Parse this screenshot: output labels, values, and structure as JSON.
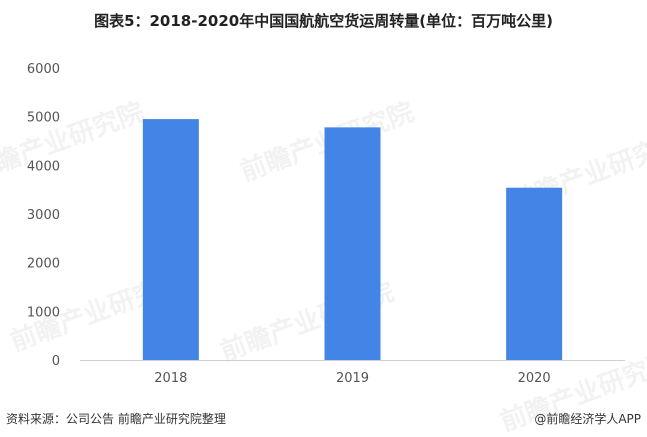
{
  "chart_data": {
    "type": "bar",
    "title": "图表5：2018-2020年中国国航航空货运周转量(单位：百万吨公里)",
    "categories": [
      "2018",
      "2019",
      "2020"
    ],
    "values": [
      4950,
      4780,
      3540
    ],
    "ylim": [
      0,
      6000
    ],
    "yticks": [
      0,
      1000,
      2000,
      3000,
      4000,
      5000,
      6000
    ],
    "bar_color": "#4285e6",
    "grid": false,
    "xlabel": "",
    "ylabel": ""
  },
  "watermark": "前瞻产业研究院",
  "footer": {
    "source": "资料来源：公司公告 前瞻产业研究院整理",
    "brand": "@前瞻经济学人APP"
  }
}
